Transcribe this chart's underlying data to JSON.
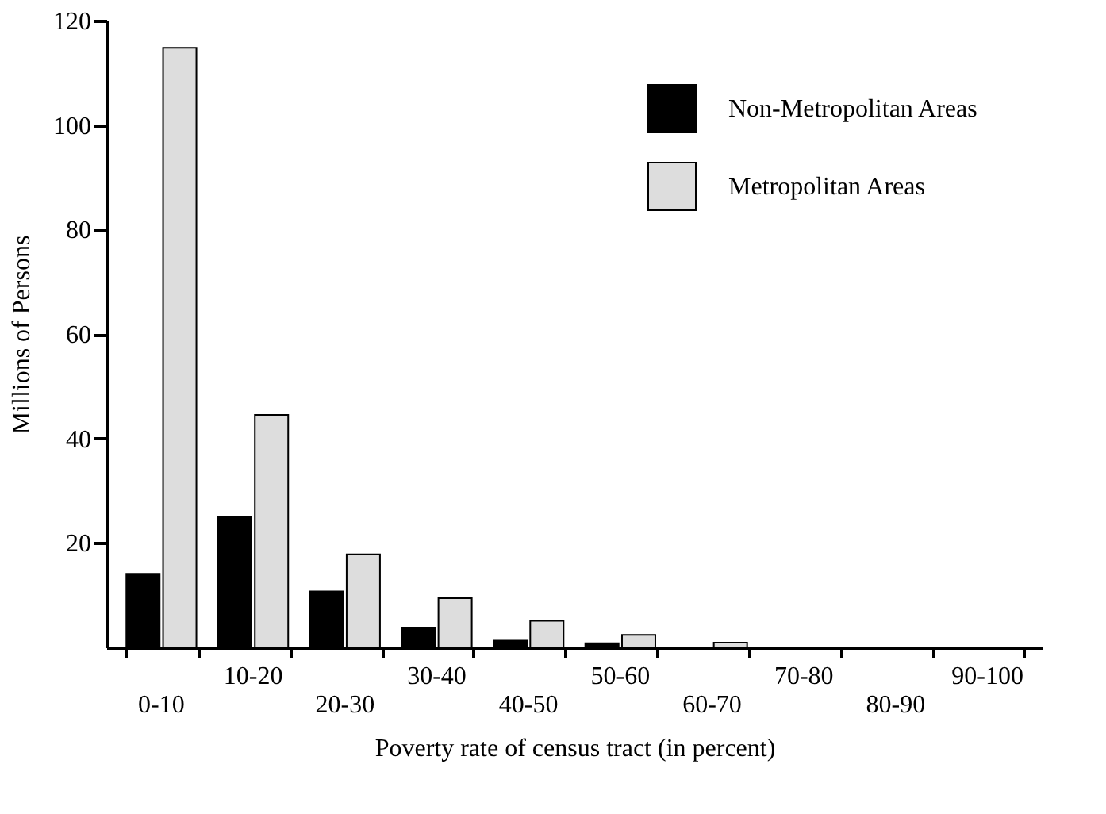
{
  "chart_data": {
    "type": "bar",
    "xlabel": "Poverty rate of census tract (in percent)",
    "ylabel": "Millions of Persons",
    "categories": [
      "0-10",
      "10-20",
      "20-30",
      "30-40",
      "40-50",
      "50-60",
      "60-70",
      "70-80",
      "80-90",
      "90-100"
    ],
    "series": [
      {
        "name": "Non-Metropolitan Areas",
        "color": "#000000",
        "values": [
          14.1,
          24.9,
          10.7,
          3.8,
          1.3,
          0.8,
          null,
          null,
          null,
          null
        ]
      },
      {
        "name": "Metropolitan Areas",
        "color": "#dddddd",
        "values": [
          114.8,
          44.5,
          17.8,
          9.4,
          5.1,
          2.4,
          0.9,
          null,
          null,
          null
        ]
      }
    ],
    "ylim": [
      0,
      120
    ],
    "yticks": [
      20,
      40,
      60,
      80,
      100,
      120
    ],
    "grid": false,
    "legend": "top right"
  }
}
